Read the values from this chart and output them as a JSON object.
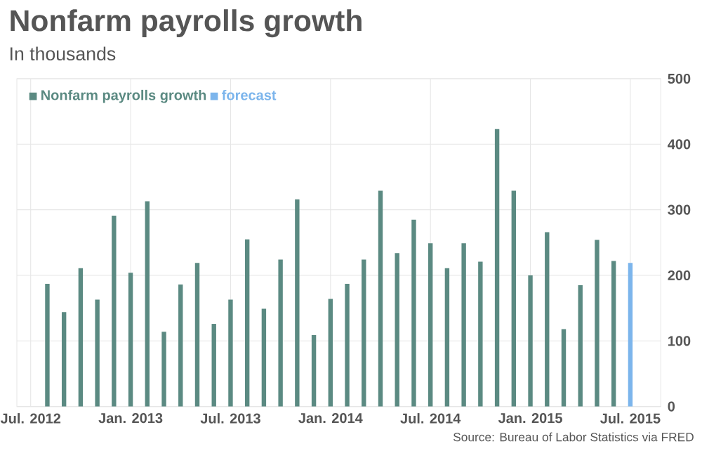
{
  "chart_data": {
    "type": "bar",
    "title": "Nonfarm payrolls growth",
    "subtitle": "In thousands",
    "categories": [
      "Jul. 2012",
      null,
      null,
      null,
      null,
      null,
      "Jan. 2013",
      null,
      null,
      null,
      null,
      null,
      "Jul. 2013",
      null,
      null,
      null,
      null,
      null,
      "Jan. 2014",
      null,
      null,
      null,
      null,
      null,
      "Jul. 2014",
      null,
      null,
      null,
      null,
      null,
      "Jan. 2015",
      null,
      null,
      null,
      null,
      null,
      "Jul. 2015"
    ],
    "series": [
      {
        "name": "Nonfarm payrolls growth",
        "color": "#5b8a82",
        "values": [
          null,
          187,
          144,
          211,
          163,
          291,
          204,
          313,
          114,
          186,
          219,
          126,
          163,
          255,
          149,
          224,
          316,
          109,
          164,
          187,
          224,
          329,
          234,
          285,
          249,
          211,
          249,
          221,
          423,
          329,
          200,
          266,
          118,
          185,
          254,
          222,
          null
        ]
      },
      {
        "name": "forecast",
        "color": "#7cb5ec",
        "values": [
          null,
          null,
          null,
          null,
          null,
          null,
          null,
          null,
          null,
          null,
          null,
          null,
          null,
          null,
          null,
          null,
          null,
          null,
          null,
          null,
          null,
          null,
          null,
          null,
          null,
          null,
          null,
          null,
          null,
          null,
          null,
          null,
          null,
          null,
          null,
          null,
          219
        ]
      }
    ],
    "ylim": [
      0,
      500
    ],
    "yticks": [
      0,
      100,
      200,
      300,
      400,
      500
    ],
    "grid": true,
    "legend": "top left",
    "annotations": [
      "Source: Bureau of Labor Statistics via FRED"
    ]
  }
}
